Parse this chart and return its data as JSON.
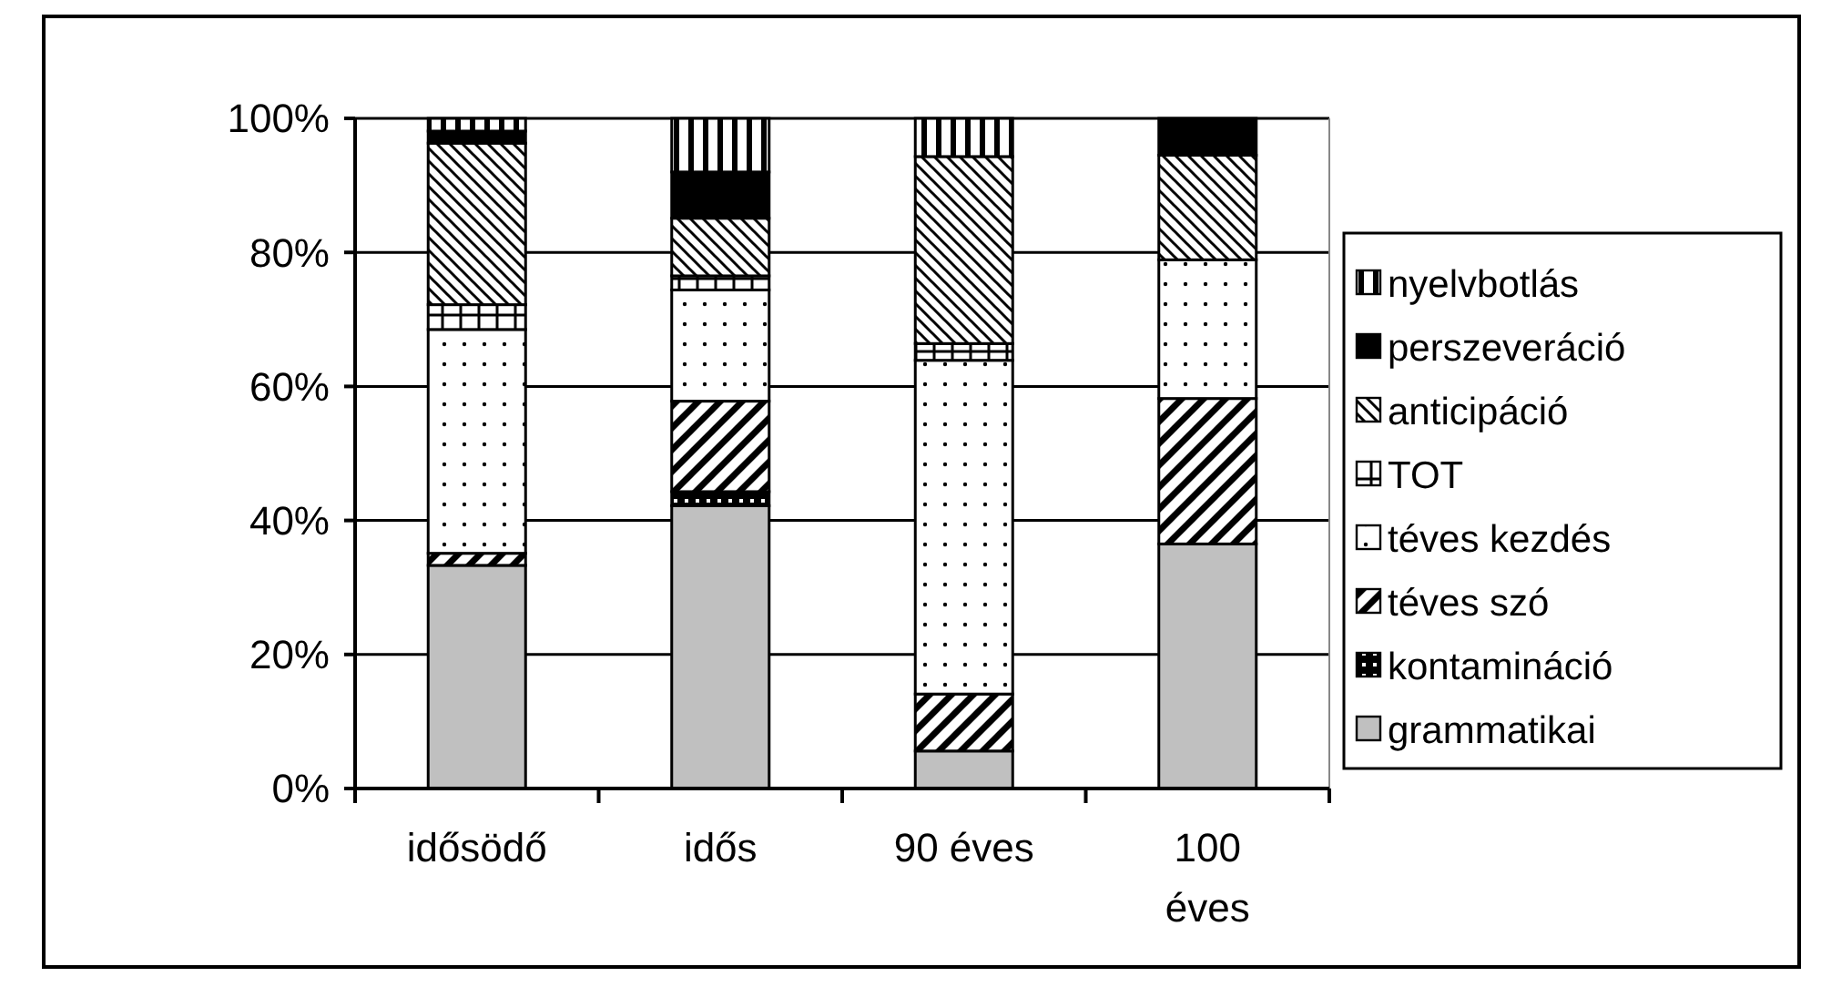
{
  "chart_data": {
    "type": "bar",
    "stacked": true,
    "categories": [
      "idősödő",
      "idős",
      "90 éves",
      "100 éves"
    ],
    "series": [
      {
        "name": "grammatikai",
        "color": "#c0c0c0",
        "values": [
          33.3,
          42.2,
          5.6,
          36.5
        ]
      },
      {
        "name": "kontamináció",
        "color": "#000000",
        "values": [
          0,
          2.1,
          0,
          0
        ]
      },
      {
        "name": "téves szó",
        "color": "#000000",
        "values": [
          1.8,
          13.5,
          8.5,
          21.7
        ]
      },
      {
        "name": "téves kezdés",
        "color": "#000000",
        "values": [
          33.4,
          16.6,
          49.8,
          20.7
        ]
      },
      {
        "name": "TOT",
        "color": "#000000",
        "values": [
          3.7,
          2.1,
          2.5,
          0
        ]
      },
      {
        "name": "anticipáció",
        "color": "#000000",
        "values": [
          24.1,
          8.6,
          27.9,
          15.6
        ]
      },
      {
        "name": "perszeveráció",
        "color": "#000000",
        "values": [
          1.8,
          6.9,
          0,
          5.5
        ]
      },
      {
        "name": "nyelvbotlás",
        "color": "#000000",
        "values": [
          1.9,
          8.0,
          5.7,
          0
        ]
      }
    ],
    "ylim": [
      0,
      100
    ],
    "yticks": [
      {
        "value": 0,
        "label": "0%"
      },
      {
        "value": 20,
        "label": "20%"
      },
      {
        "value": 40,
        "label": "40%"
      },
      {
        "value": 60,
        "label": "60%"
      },
      {
        "value": 80,
        "label": "80%"
      },
      {
        "value": 100,
        "label": "100%"
      }
    ],
    "grid": "y",
    "legend": "right"
  }
}
